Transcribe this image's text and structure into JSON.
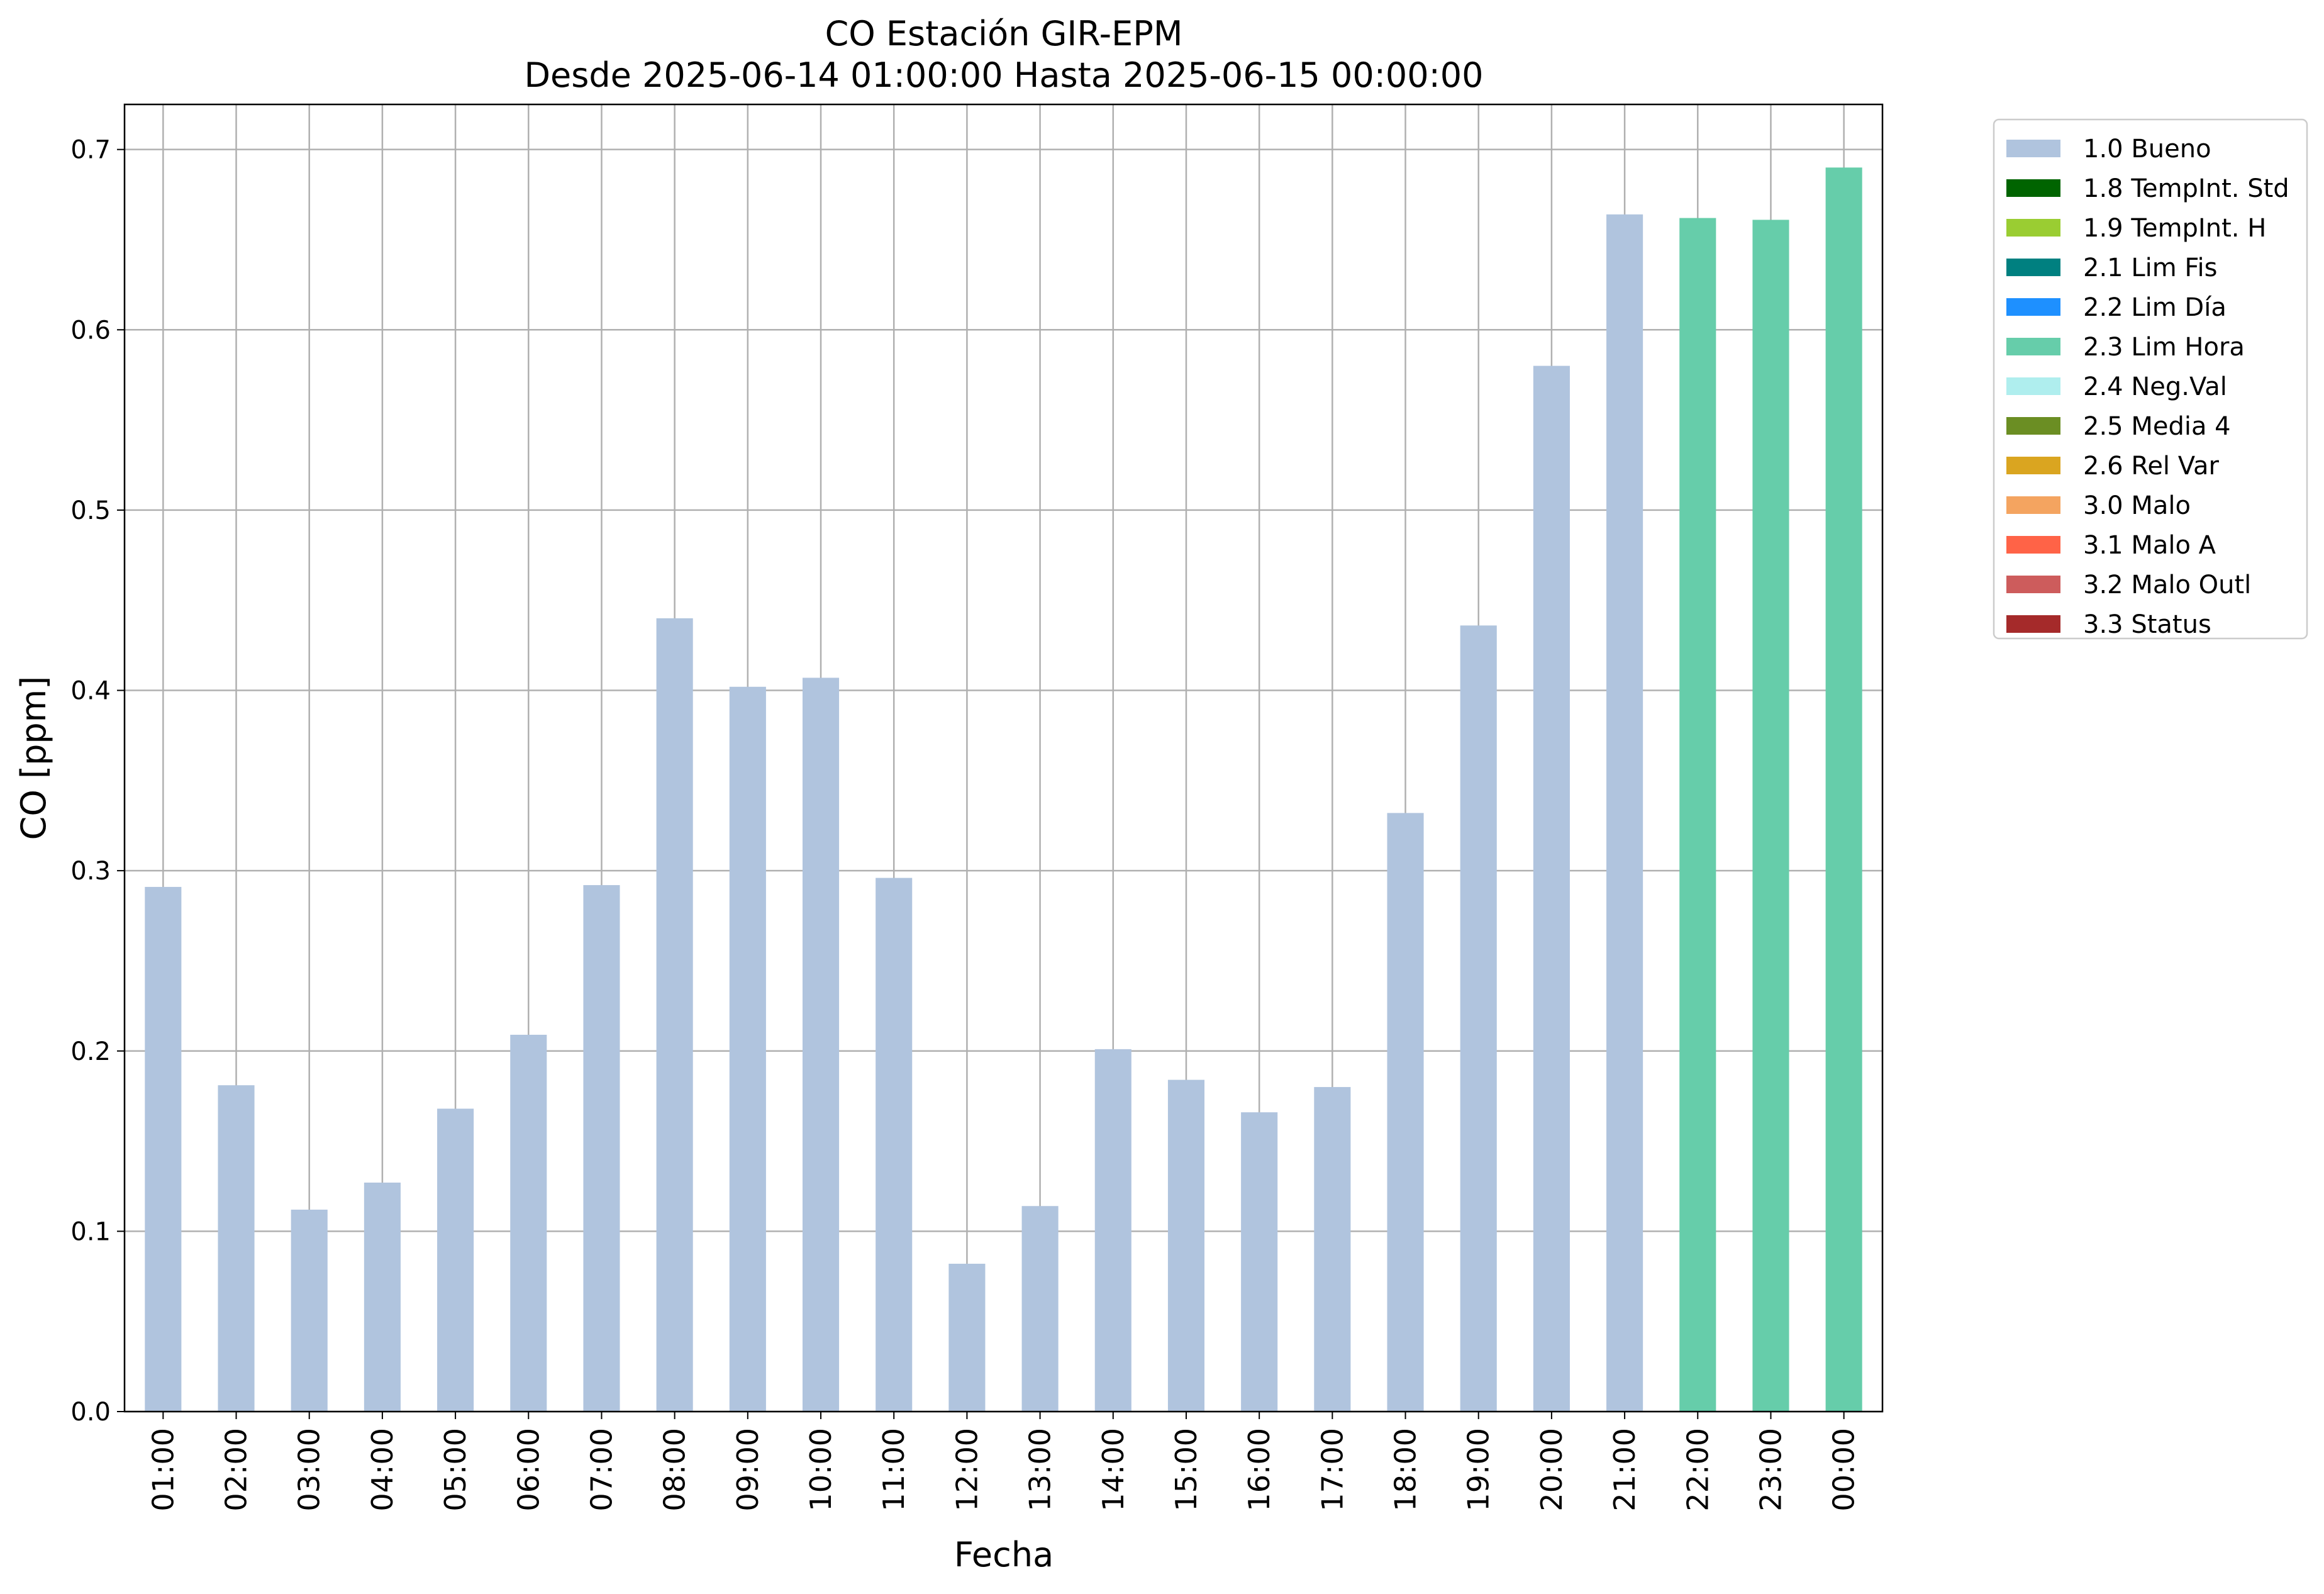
{
  "chart_data": {
    "type": "bar",
    "title": "CO Estación GIR-EPM",
    "subtitle": "Desde 2025-06-14 01:00:00 Hasta 2025-06-15 00:00:00",
    "xlabel": "Fecha",
    "ylabel": "CO [ppm]",
    "ylim": [
      0,
      0.725
    ],
    "yticks": [
      0.0,
      0.1,
      0.2,
      0.3,
      0.4,
      0.5,
      0.6,
      0.7
    ],
    "ytick_labels": [
      "0.0",
      "0.1",
      "0.2",
      "0.3",
      "0.4",
      "0.5",
      "0.6",
      "0.7"
    ],
    "grid": true,
    "legend_position": "outside-top-right",
    "categories": [
      "01:00",
      "02:00",
      "03:00",
      "04:00",
      "05:00",
      "06:00",
      "07:00",
      "08:00",
      "09:00",
      "10:00",
      "11:00",
      "12:00",
      "13:00",
      "14:00",
      "15:00",
      "16:00",
      "17:00",
      "18:00",
      "19:00",
      "20:00",
      "21:00",
      "22:00",
      "23:00",
      "00:00"
    ],
    "values": [
      0.291,
      0.181,
      0.112,
      0.127,
      0.168,
      0.209,
      0.292,
      0.44,
      0.402,
      0.407,
      0.296,
      0.082,
      0.114,
      0.201,
      0.184,
      0.166,
      0.18,
      0.332,
      0.436,
      0.58,
      0.664,
      0.662,
      0.661,
      0.69
    ],
    "flags": [
      "1.0 Bueno",
      "1.0 Bueno",
      "1.0 Bueno",
      "1.0 Bueno",
      "1.0 Bueno",
      "1.0 Bueno",
      "1.0 Bueno",
      "1.0 Bueno",
      "1.0 Bueno",
      "1.0 Bueno",
      "1.0 Bueno",
      "1.0 Bueno",
      "1.0 Bueno",
      "1.0 Bueno",
      "1.0 Bueno",
      "1.0 Bueno",
      "1.0 Bueno",
      "1.0 Bueno",
      "1.0 Bueno",
      "1.0 Bueno",
      "1.0 Bueno",
      "2.3 Lim Hora",
      "2.3 Lim Hora",
      "2.3 Lim Hora"
    ],
    "legend": [
      {
        "label": "1.0 Bueno",
        "color": "#b0c4de"
      },
      {
        "label": "1.8 TempInt. Std",
        "color": "#006400"
      },
      {
        "label": "1.9 TempInt. H",
        "color": "#9acd32"
      },
      {
        "label": "2.1 Lim Fis",
        "color": "#008080"
      },
      {
        "label": "2.2 Lim Día",
        "color": "#1e90ff"
      },
      {
        "label": "2.3 Lim Hora",
        "color": "#66cdaa"
      },
      {
        "label": "2.4 Neg.Val",
        "color": "#afeeee"
      },
      {
        "label": "2.5 Media 4",
        "color": "#6b8e23"
      },
      {
        "label": "2.6 Rel Var",
        "color": "#daa520"
      },
      {
        "label": "3.0 Malo",
        "color": "#f4a460"
      },
      {
        "label": "3.1 Malo A",
        "color": "#ff6347"
      },
      {
        "label": "3.2 Malo Outl",
        "color": "#cd5c5c"
      },
      {
        "label": "3.3 Status",
        "color": "#a52a2a"
      }
    ]
  }
}
